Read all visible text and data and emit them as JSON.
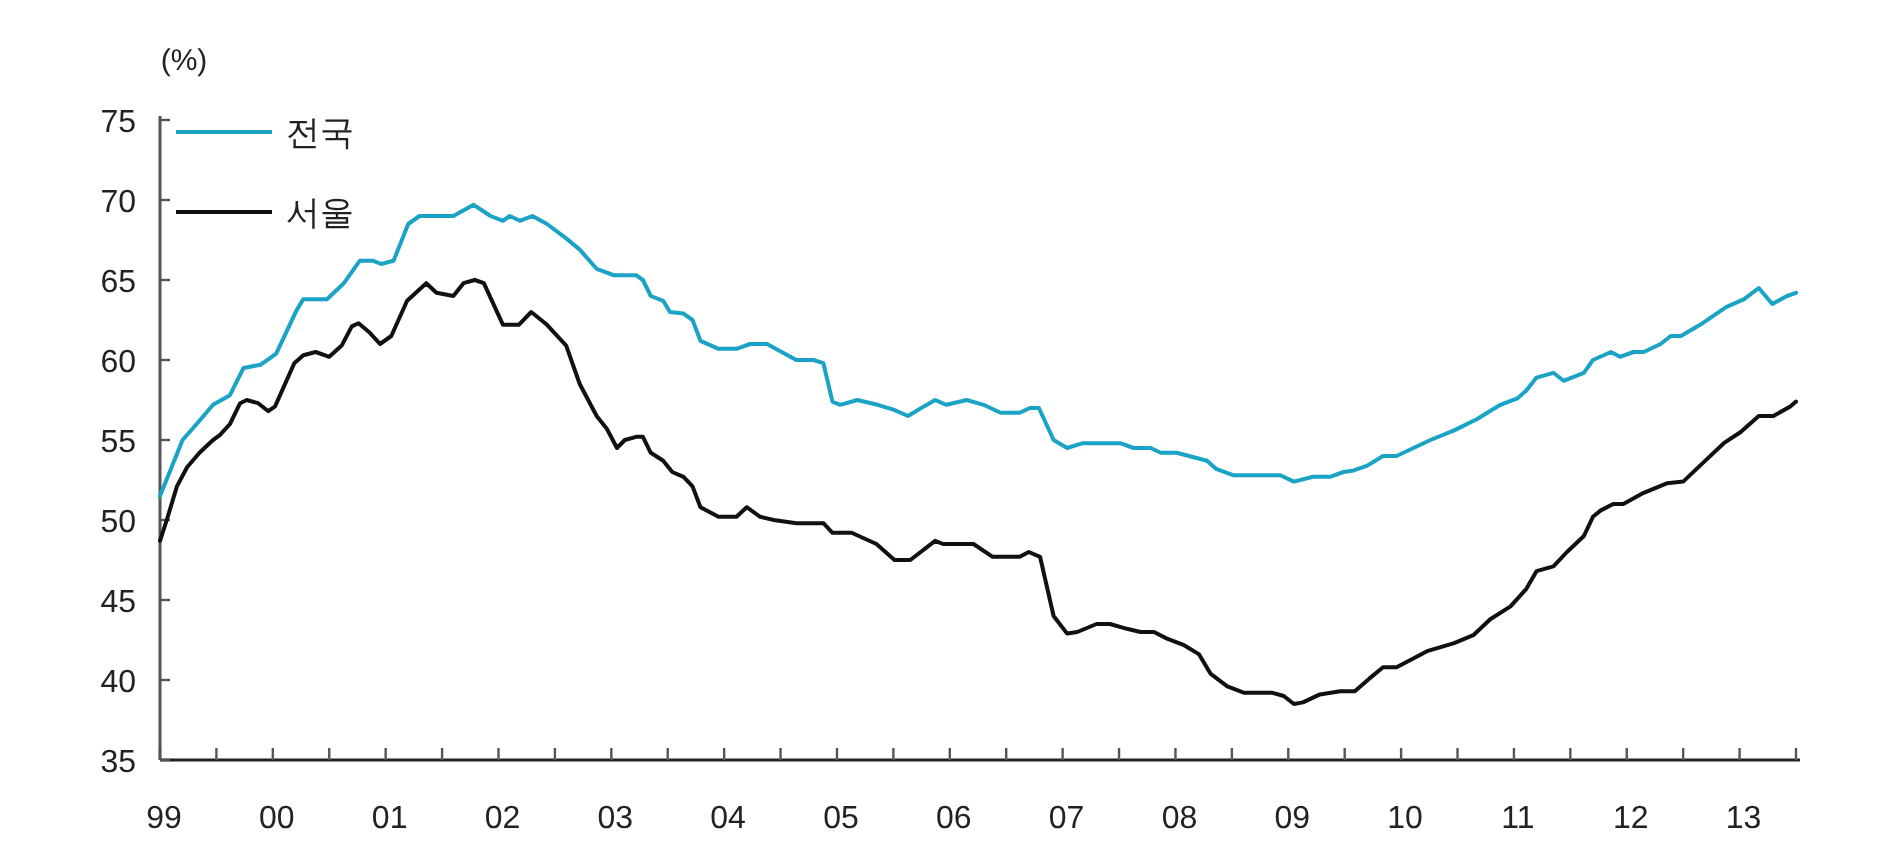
{
  "chart_data": {
    "type": "line",
    "ylabel": "(%)",
    "xlim": [
      1999,
      2013.5
    ],
    "ylim": [
      35,
      75
    ],
    "yticks": [
      35,
      40,
      45,
      50,
      55,
      60,
      65,
      70,
      75
    ],
    "xticks": [
      {
        "value": 1999,
        "label": "99"
      },
      {
        "value": 1999.5,
        "label": null
      },
      {
        "value": 2000,
        "label": "00"
      },
      {
        "value": 2000.5,
        "label": null
      },
      {
        "value": 2001,
        "label": "01"
      },
      {
        "value": 2001.5,
        "label": null
      },
      {
        "value": 2002,
        "label": "02"
      },
      {
        "value": 2002.5,
        "label": null
      },
      {
        "value": 2003,
        "label": "03"
      },
      {
        "value": 2003.5,
        "label": null
      },
      {
        "value": 2004,
        "label": "04"
      },
      {
        "value": 2004.5,
        "label": null
      },
      {
        "value": 2005,
        "label": "05"
      },
      {
        "value": 2005.5,
        "label": null
      },
      {
        "value": 2006,
        "label": "06"
      },
      {
        "value": 2006.5,
        "label": null
      },
      {
        "value": 2007,
        "label": "07"
      },
      {
        "value": 2007.5,
        "label": null
      },
      {
        "value": 2008,
        "label": "08"
      },
      {
        "value": 2008.5,
        "label": null
      },
      {
        "value": 2009,
        "label": "09"
      },
      {
        "value": 2009.5,
        "label": null
      },
      {
        "value": 2010,
        "label": "10"
      },
      {
        "value": 2010.5,
        "label": null
      },
      {
        "value": 2011,
        "label": "11"
      },
      {
        "value": 2011.5,
        "label": null
      },
      {
        "value": 2012,
        "label": "12"
      },
      {
        "value": 2012.5,
        "label": null
      },
      {
        "value": 2013,
        "label": "13"
      },
      {
        "value": 2013.5,
        "label": null
      }
    ],
    "legend": "top left",
    "marker": "none",
    "line_style": "solid",
    "series": [
      {
        "name": "전국",
        "color": "#1ba3c6",
        "x": [
          1999.0,
          1999.2,
          1999.35,
          1999.47,
          1999.62,
          1999.74,
          1999.89,
          2000.03,
          2000.21,
          2000.27,
          2000.48,
          2000.63,
          2000.77,
          2000.89,
          2000.96,
          2001.07,
          2001.2,
          2001.3,
          2001.6,
          2001.78,
          2001.93,
          2002.04,
          2002.1,
          2002.19,
          2002.3,
          2002.43,
          2002.6,
          2002.72,
          2002.87,
          2003.02,
          2003.22,
          2003.28,
          2003.35,
          2003.46,
          2003.52,
          2003.64,
          2003.72,
          2003.79,
          2003.95,
          2004.11,
          2004.23,
          2004.38,
          2004.64,
          2004.79,
          2004.88,
          2004.96,
          2005.03,
          2005.18,
          2005.36,
          2005.5,
          2005.63,
          2005.77,
          2005.87,
          2005.97,
          2006.15,
          2006.3,
          2006.45,
          2006.62,
          2006.71,
          2006.79,
          2006.92,
          2007.04,
          2007.18,
          2007.51,
          2007.63,
          2007.78,
          2007.87,
          2008.01,
          2008.28,
          2008.36,
          2008.51,
          2008.93,
          2009.05,
          2009.22,
          2009.37,
          2009.49,
          2009.58,
          2009.7,
          2009.84,
          2009.96,
          2010.26,
          2010.47,
          2010.67,
          2010.88,
          2011.03,
          2011.11,
          2011.2,
          2011.35,
          2011.44,
          2011.62,
          2011.7,
          2011.86,
          2011.94,
          2012.06,
          2012.15,
          2012.3,
          2012.39,
          2012.48,
          2012.65,
          2012.88,
          2013.04,
          2013.17,
          2013.29,
          2013.42,
          2013.5
        ],
        "values": [
          51.5,
          55,
          56.2,
          57.2,
          57.8,
          59.5,
          59.7,
          60.4,
          63.1,
          63.8,
          63.8,
          64.8,
          66.2,
          66.2,
          66,
          66.2,
          68.5,
          69,
          69,
          69.7,
          69,
          68.7,
          69,
          68.7,
          69,
          68.5,
          67.6,
          66.9,
          65.7,
          65.3,
          65.3,
          65,
          64,
          63.7,
          63,
          62.9,
          62.5,
          61.2,
          60.7,
          60.7,
          61,
          61,
          60,
          60,
          59.8,
          57.4,
          57.2,
          57.5,
          57.2,
          56.9,
          56.5,
          57.1,
          57.5,
          57.2,
          57.5,
          57.2,
          56.7,
          56.7,
          57,
          57,
          55,
          54.5,
          54.8,
          54.8,
          54.5,
          54.5,
          54.2,
          54.2,
          53.7,
          53.2,
          52.8,
          52.8,
          52.4,
          52.7,
          52.7,
          53,
          53.1,
          53.4,
          54,
          54,
          55,
          55.6,
          56.3,
          57.2,
          57.6,
          58.1,
          58.9,
          59.2,
          58.7,
          59.2,
          60,
          60.5,
          60.2,
          60.5,
          60.5,
          61,
          61.5,
          61.5,
          62.2,
          63.3,
          63.8,
          64.5,
          63.5,
          64,
          64.2
        ]
      },
      {
        "name": "서울",
        "color": "#111111",
        "x": [
          1999.0,
          1999.06,
          1999.15,
          1999.24,
          1999.35,
          1999.47,
          1999.53,
          1999.62,
          1999.71,
          1999.77,
          1999.87,
          1999.96,
          2000.02,
          2000.19,
          2000.27,
          2000.38,
          2000.5,
          2000.61,
          2000.7,
          2000.76,
          2000.86,
          2000.95,
          2001.05,
          2001.19,
          2001.36,
          2001.45,
          2001.6,
          2001.69,
          2001.79,
          2001.87,
          2002.04,
          2002.18,
          2002.29,
          2002.43,
          2002.6,
          2002.72,
          2002.87,
          2002.96,
          2003.05,
          2003.12,
          2003.22,
          2003.28,
          2003.35,
          2003.46,
          2003.54,
          2003.64,
          2003.72,
          2003.79,
          2003.95,
          2004.11,
          2004.2,
          2004.32,
          2004.44,
          2004.64,
          2004.88,
          2004.96,
          2005.13,
          2005.35,
          2005.51,
          2005.65,
          2005.87,
          2005.94,
          2006.21,
          2006.38,
          2006.62,
          2006.7,
          2006.8,
          2006.92,
          2007.04,
          2007.13,
          2007.3,
          2007.42,
          2007.57,
          2007.69,
          2007.81,
          2007.92,
          2008.07,
          2008.21,
          2008.31,
          2008.46,
          2008.61,
          2008.86,
          2008.96,
          2009.05,
          2009.13,
          2009.28,
          2009.46,
          2009.59,
          2009.72,
          2009.84,
          2009.96,
          2010.23,
          2010.47,
          2010.64,
          2010.79,
          2010.97,
          2011.11,
          2011.2,
          2011.35,
          2011.47,
          2011.62,
          2011.7,
          2011.77,
          2011.88,
          2011.97,
          2012.15,
          2012.36,
          2012.5,
          2012.68,
          2012.86,
          2013.01,
          2013.17,
          2013.3,
          2013.45,
          2013.5
        ],
        "values": [
          48.7,
          50,
          52.1,
          53.3,
          54.2,
          55,
          55.3,
          56,
          57.3,
          57.5,
          57.3,
          56.8,
          57.1,
          59.8,
          60.3,
          60.5,
          60.2,
          60.9,
          62.1,
          62.3,
          61.7,
          61,
          61.5,
          63.7,
          64.8,
          64.2,
          64,
          64.8,
          65,
          64.8,
          62.2,
          62.2,
          63,
          62.2,
          60.9,
          58.5,
          56.5,
          55.7,
          54.5,
          55,
          55.2,
          55.2,
          54.2,
          53.7,
          53,
          52.7,
          52.1,
          50.8,
          50.2,
          50.2,
          50.8,
          50.2,
          50,
          49.8,
          49.8,
          49.2,
          49.2,
          48.5,
          47.5,
          47.5,
          48.7,
          48.5,
          48.5,
          47.7,
          47.7,
          48,
          47.7,
          44,
          42.9,
          43,
          43.5,
          43.5,
          43.2,
          43,
          43,
          42.6,
          42.2,
          41.6,
          40.4,
          39.6,
          39.2,
          39.2,
          39,
          38.5,
          38.6,
          39.1,
          39.3,
          39.3,
          40.1,
          40.8,
          40.8,
          41.8,
          42.3,
          42.8,
          43.8,
          44.6,
          45.7,
          46.8,
          47.1,
          48,
          49,
          50.2,
          50.6,
          51,
          51,
          51.7,
          52.3,
          52.4,
          53.6,
          54.8,
          55.5,
          56.5,
          56.5,
          57.1,
          57.4
        ]
      }
    ]
  }
}
